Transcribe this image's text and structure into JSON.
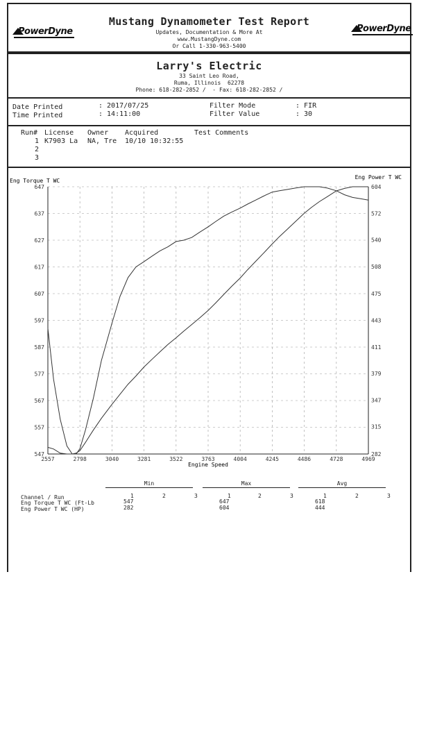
{
  "header": {
    "title": "Mustang Dynamometer Test Report",
    "line1": "Updates, Documentation & More At",
    "line2": "www.MustangDyne.com",
    "line3": "Or Call 1-330-963-5400",
    "logo_left": "PowerDyne",
    "logo_right": "PowerDyne"
  },
  "customer": {
    "name": "Larry's Electric",
    "address1": "33 Saint Leo Road,",
    "address2": "Ruma, Illinois  62278",
    "phone_line": "Phone: 618-282-2852 /  - Fax: 618-282-2852 /"
  },
  "print_info": {
    "date_label": "Date Printed",
    "date_value": ": 2017/07/25",
    "time_label": "Time Printed",
    "time_value": ": 14:11:00",
    "filter_mode_label": "Filter Mode",
    "filter_mode_value": ": FIR",
    "filter_value_label": "Filter Value",
    "filter_value_value": ": 30"
  },
  "runs": {
    "headers": [
      "Run#",
      "License",
      "Owner",
      "Acquired",
      "Test Comments"
    ],
    "rows": [
      {
        "run": "1",
        "license": "K7903 La",
        "owner": "NA, Tre",
        "acquired": "10/10 10:32:55"
      },
      {
        "run": "2",
        "license": "",
        "owner": "",
        "acquired": ""
      },
      {
        "run": "3",
        "license": "",
        "owner": "",
        "acquired": ""
      }
    ]
  },
  "chart_data": {
    "type": "line",
    "title": "",
    "xlabel": "Engine Speed",
    "ylabel_left": "Eng Torque T WC",
    "ylabel_right": "Eng Power T WC",
    "xlim": [
      2557,
      4969
    ],
    "ylim_left": [
      547,
      647
    ],
    "ylim_right": [
      282,
      604
    ],
    "x_ticks": [
      2557,
      2798,
      3040,
      3281,
      3522,
      3763,
      4004,
      4245,
      4486,
      4728,
      4969
    ],
    "y_ticks_left": [
      547,
      557,
      567,
      577,
      587,
      597,
      607,
      617,
      627,
      637,
      647
    ],
    "y_ticks_right": [
      282,
      315,
      347,
      379,
      411,
      443,
      475,
      508,
      540,
      572,
      604
    ],
    "grid": true,
    "series": [
      {
        "name": "Eng Torque T WC",
        "axis": "left",
        "x": [
          2557,
          2600,
          2650,
          2700,
          2740,
          2770,
          2798,
          2840,
          2900,
          2960,
          3040,
          3100,
          3160,
          3220,
          3281,
          3340,
          3400,
          3460,
          3522,
          3580,
          3640,
          3700,
          3763,
          3820,
          3880,
          3940,
          4004,
          4060,
          4120,
          4180,
          4245,
          4300,
          4360,
          4420,
          4486,
          4540,
          4600,
          4660,
          4728,
          4790,
          4850,
          4910,
          4969
        ],
        "y": [
          594,
          575,
          560,
          550,
          547,
          547,
          549,
          556,
          568,
          582,
          596,
          606,
          613,
          617,
          619,
          621,
          623,
          624.5,
          626.5,
          627,
          628,
          630,
          632,
          634,
          636,
          637.5,
          639,
          640.5,
          642,
          643.5,
          645,
          645.5,
          646,
          646.5,
          647,
          647,
          647,
          646.5,
          645.5,
          644,
          643,
          642.5,
          642
        ]
      },
      {
        "name": "Eng Power T WC",
        "axis": "right",
        "x": [
          2557,
          2600,
          2650,
          2700,
          2740,
          2770,
          2798,
          2840,
          2900,
          2960,
          3040,
          3100,
          3160,
          3220,
          3281,
          3340,
          3400,
          3460,
          3522,
          3580,
          3640,
          3700,
          3763,
          3820,
          3880,
          3940,
          4004,
          4060,
          4120,
          4180,
          4245,
          4300,
          4360,
          4420,
          4486,
          4540,
          4600,
          4660,
          4728,
          4790,
          4850,
          4910,
          4969
        ],
        "y": [
          290,
          288,
          283,
          282,
          282,
          283,
          286,
          296,
          311,
          325,
          342,
          354,
          366,
          376,
          387,
          396,
          405,
          414,
          422,
          430,
          438,
          446,
          455,
          464,
          474,
          484,
          494,
          504,
          514,
          524,
          535,
          544,
          553,
          562,
          572,
          579,
          586,
          592,
          599,
          602,
          604,
          604,
          604
        ]
      }
    ]
  },
  "summary": {
    "groups": [
      "Min",
      "Max",
      "Avg"
    ],
    "run_numbers": [
      "1",
      "2",
      "3"
    ],
    "channel_header": "Channel / Run",
    "rows": [
      {
        "channel": "Eng Torque T WC (Ft-Lb",
        "min": "547",
        "max": "647",
        "avg": "618"
      },
      {
        "channel": "Eng Power T WC (HP)",
        "min": "282",
        "max": "604",
        "avg": "444"
      }
    ]
  }
}
